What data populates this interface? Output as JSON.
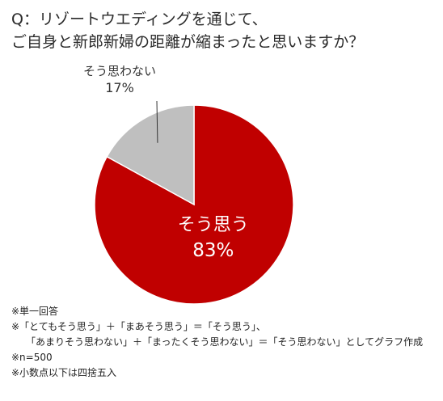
{
  "title": {
    "line1": "Q：リゾートウエディングを通じて、",
    "line2": "ご自身と新郎新婦の距離が縮まったと思いますか？"
  },
  "chart_data": {
    "type": "pie",
    "slices": [
      {
        "label": "そう思う",
        "value": 83,
        "value_label": "83%",
        "color": "#c00000"
      },
      {
        "label": "そう思わない",
        "value": 17,
        "value_label": "17%",
        "color": "#bfbfbf"
      }
    ],
    "start": "12 o'clock",
    "direction": "clockwise"
  },
  "notes": [
    "※単一回答",
    "※「とてもそう思う」＋「まあそう思う」＝「そう思う」、",
    "「あまりそう思わない」＋「まったくそう思わない」＝「そう思わない」としてグラフ作成",
    "※n=500",
    "※小数点以下は四捨五入"
  ]
}
